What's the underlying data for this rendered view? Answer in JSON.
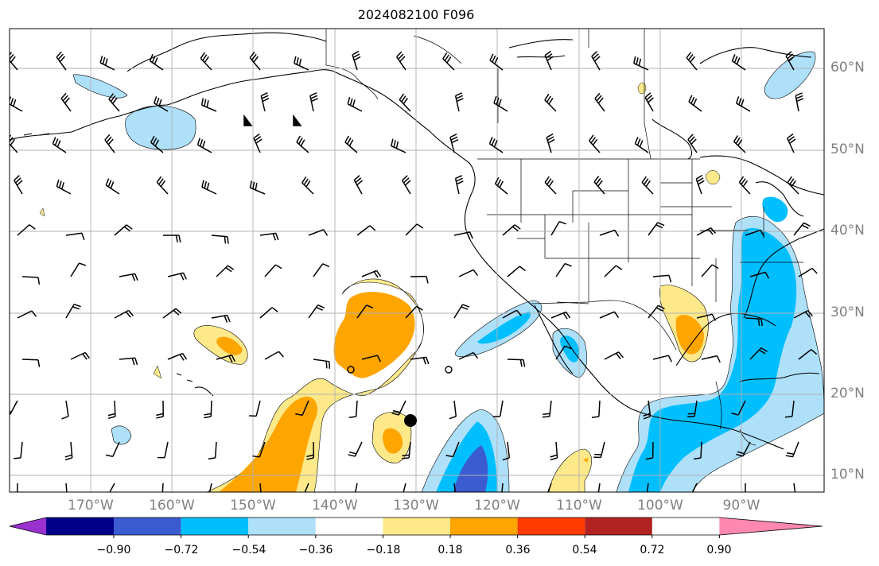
{
  "map": {
    "title": "2024082100 F096",
    "lon_ticks": [
      "170°W",
      "160°W",
      "150°W",
      "140°W",
      "130°W",
      "120°W",
      "110°W",
      "100°W",
      "90°W"
    ],
    "lat_ticks": [
      "60°N",
      "50°N",
      "40°N",
      "30°N",
      "20°N",
      "10°N"
    ]
  },
  "colorbar": {
    "labels": [
      "−0.90",
      "−0.72",
      "−0.54",
      "−0.36",
      "−0.18",
      "0.18",
      "0.36",
      "0.54",
      "0.72",
      "0.90"
    ],
    "colors": [
      "#9b30d0",
      "#000088",
      "#3b5bd0",
      "#00bfff",
      "#aee0fa",
      "#ffffff",
      "#fde98a",
      "#ffa500",
      "#ff3b00",
      "#b22222",
      "#ff88b0"
    ]
  }
}
